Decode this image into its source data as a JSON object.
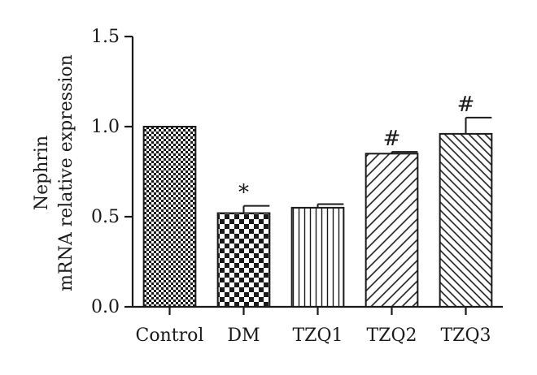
{
  "chart_data": {
    "type": "bar",
    "title": "",
    "xlabel": "",
    "ylabel_lines": [
      "Nephrin",
      "mRNA relative expression"
    ],
    "categories": [
      "Control",
      "DM",
      "TZQ1",
      "TZQ2",
      "TZQ3"
    ],
    "values": [
      1.0,
      0.52,
      0.55,
      0.85,
      0.96
    ],
    "errors": [
      0.0,
      0.04,
      0.02,
      0.01,
      0.09
    ],
    "significance": [
      "",
      "*",
      "",
      "#",
      "#"
    ],
    "fill_patterns": [
      "fine-checker",
      "coarse-checker",
      "vertical-lines",
      "diagonal-lines",
      "dense-diagonal-lines"
    ],
    "ylim": [
      0.0,
      1.5
    ],
    "yticks": [
      0.0,
      0.5,
      1.0,
      1.5
    ],
    "ytick_labels": [
      "0.0",
      "0.5",
      "1.0",
      "1.5"
    ],
    "grid": false,
    "legend": "none",
    "colors": {
      "ink": "#1a1a1a",
      "background": "#ffffff"
    }
  }
}
